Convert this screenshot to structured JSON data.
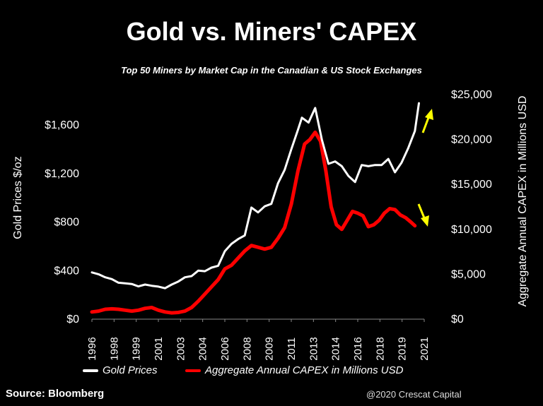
{
  "header": {
    "title": "Gold vs. Miners' CAPEX",
    "subtitle": "Top 50 Miners by Market Cap in the Canadian & US Stock Exchanges"
  },
  "footer": {
    "source": "Source: Bloomberg",
    "watermark": "@2020 Crescat Capital"
  },
  "legend": {
    "gold": "Gold Prices",
    "capex": "Aggregate Annual CAPEX in Millions USD"
  },
  "colors": {
    "background": "#000000",
    "gold_line": "#ffffff",
    "capex_line": "#ff0000",
    "arrow": "#ffff00"
  },
  "chart_data": {
    "type": "line",
    "ylabel": "Gold Prices $/oz",
    "y2label": "Aggregate Annual CAPEX in Millions USD",
    "ylim": [
      0,
      1800
    ],
    "y_ticks": [
      0,
      400,
      800,
      1200,
      1600
    ],
    "y_tick_labels": [
      "$0",
      "$400",
      "$800",
      "$1,200",
      "$1,600"
    ],
    "y2lim": [
      0,
      25000
    ],
    "y2_ticks": [
      0,
      5000,
      10000,
      15000,
      20000,
      25000
    ],
    "y2_tick_labels": [
      "$0",
      "$5,000",
      "$10,000",
      "$15,000",
      "$20,000",
      "$25,000"
    ],
    "x_tick_labels": [
      "1996",
      "1998",
      "1999",
      "2001",
      "2003",
      "2004",
      "2006",
      "2008",
      "2009",
      "2011",
      "2013",
      "2014",
      "2016",
      "2018",
      "2019",
      "2021"
    ],
    "annotations": [
      "up-arrow near gold prices (yellow)",
      "down-arrow near CAPEX (yellow)"
    ],
    "grid": false,
    "legend_position": "bottom",
    "series": [
      {
        "name": "Gold Prices",
        "axis": "left",
        "x": [
          1996.0,
          1996.5,
          1997.0,
          1997.5,
          1998.0,
          1998.5,
          1999.0,
          1999.5,
          2000.0,
          2000.5,
          2001.0,
          2001.5,
          2002.0,
          2002.5,
          2003.0,
          2003.5,
          2004.0,
          2004.5,
          2005.0,
          2005.5,
          2006.0,
          2006.5,
          2007.0,
          2007.5,
          2008.0,
          2008.5,
          2009.0,
          2009.5,
          2010.0,
          2010.5,
          2011.0,
          2011.5,
          2011.8,
          2012.3,
          2012.8,
          2013.3,
          2013.8,
          2014.3,
          2014.8,
          2015.3,
          2015.8,
          2016.3,
          2016.8,
          2017.3,
          2017.8,
          2018.3,
          2018.8,
          2019.3,
          2019.8,
          2020.3,
          2020.6
        ],
        "values": [
          385,
          370,
          345,
          330,
          300,
          295,
          290,
          270,
          285,
          275,
          268,
          255,
          285,
          310,
          345,
          355,
          400,
          395,
          425,
          440,
          560,
          620,
          660,
          690,
          920,
          880,
          930,
          950,
          1120,
          1230,
          1400,
          1560,
          1660,
          1620,
          1740,
          1480,
          1280,
          1300,
          1260,
          1180,
          1130,
          1270,
          1260,
          1270,
          1270,
          1320,
          1210,
          1290,
          1410,
          1550,
          1780
        ]
      },
      {
        "name": "Aggregate Annual CAPEX in Millions USD",
        "axis": "right",
        "x": [
          1996.0,
          1996.5,
          1997.0,
          1997.5,
          1998.0,
          1998.5,
          1999.0,
          1999.5,
          2000.0,
          2000.5,
          2001.0,
          2001.5,
          2002.0,
          2002.5,
          2003.0,
          2003.5,
          2004.0,
          2004.5,
          2005.0,
          2005.5,
          2006.0,
          2006.5,
          2007.0,
          2007.5,
          2008.0,
          2008.5,
          2009.0,
          2009.5,
          2010.0,
          2010.5,
          2011.0,
          2011.5,
          2012.0,
          2012.4,
          2012.8,
          2013.2,
          2013.6,
          2014.0,
          2014.4,
          2014.8,
          2015.2,
          2015.6,
          2016.0,
          2016.4,
          2016.8,
          2017.2,
          2017.6,
          2018.0,
          2018.4,
          2018.8,
          2019.2,
          2019.6,
          2020.0,
          2020.3
        ],
        "values": [
          800,
          900,
          1100,
          1150,
          1100,
          1000,
          900,
          1000,
          1200,
          1300,
          1000,
          800,
          700,
          750,
          900,
          1300,
          2000,
          2800,
          3600,
          4400,
          5600,
          6000,
          6800,
          7600,
          8200,
          8000,
          7800,
          8000,
          9000,
          10200,
          12800,
          16500,
          19500,
          20000,
          20800,
          19800,
          16500,
          12500,
          10500,
          10000,
          11000,
          12000,
          11800,
          11500,
          10300,
          10500,
          11000,
          11800,
          12300,
          12200,
          11600,
          11300,
          10800,
          10400
        ]
      }
    ]
  }
}
